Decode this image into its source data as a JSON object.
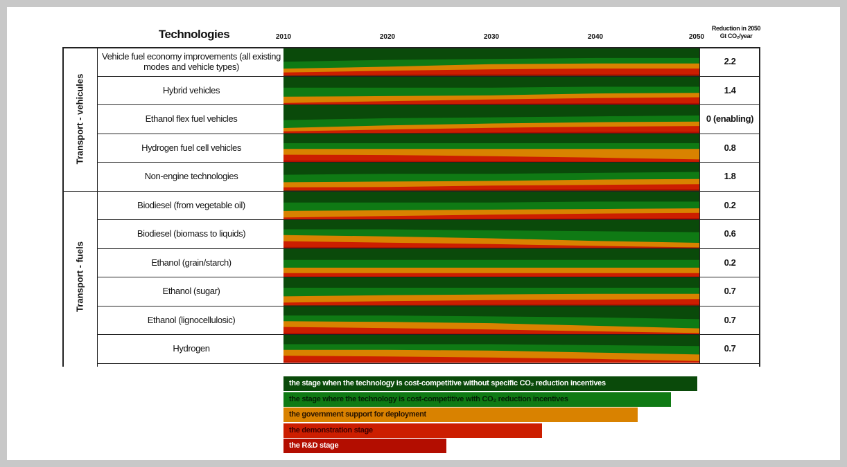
{
  "chart_data": {
    "type": "area",
    "title": "Technologies",
    "value_header_line1": "Reduction in 2050",
    "value_header_line2": "Gt CO₂/year",
    "x": [
      2010,
      2020,
      2030,
      2040,
      2050
    ],
    "xlim": [
      2010,
      2050
    ],
    "stages": [
      {
        "key": "cost_competitive",
        "label": "the stage when the technology is cost-competitive without specific CO₂ reduction incentives",
        "color": "#0a4a0a"
      },
      {
        "key": "incentives",
        "label": "the stage where the technology is cost-competitive with CO₂ reduction incentives",
        "color": "#0f7a14"
      },
      {
        "key": "deployment",
        "label": "the government support for deployment",
        "color": "#d98200"
      },
      {
        "key": "demonstration",
        "label": "the demonstration stage",
        "color": "#cc1e00"
      },
      {
        "key": "rd",
        "label": "the R&D stage",
        "color": "#b30d00"
      }
    ],
    "groups": [
      {
        "label": "Transport - vehicules",
        "rows": [
          0,
          4
        ]
      },
      {
        "label": "Transport - fuels",
        "rows": [
          5,
          10
        ]
      }
    ],
    "rows": [
      {
        "label": "Vehicle fuel economy improvements (all existing modes and vehicle types)",
        "value": "2.2",
        "boundaries": [
          [
            0.25,
            0.15,
            0.1,
            0.05,
            0.05
          ],
          [
            0.45,
            0.3,
            0.1,
            0.05,
            0.05
          ],
          [
            0.55,
            0.3,
            0.1,
            0.0,
            0.0
          ],
          [
            0.8,
            0.15,
            0.0,
            0.0,
            0.0
          ]
        ]
      },
      {
        "label": "Hybrid vehicles",
        "value": "1.4",
        "boundaries": [
          [
            0.1,
            0.1,
            0.1,
            0.05,
            0.05
          ],
          [
            0.4,
            0.35,
            0.3,
            0.15,
            0.1
          ],
          [
            0.8,
            0.55,
            0.3,
            0.1,
            0.0
          ],
          [
            1.0,
            0.75,
            0.4,
            0.05,
            0.0
          ]
        ]
      },
      {
        "label": "Ethanol flex fuel vehicles",
        "value": "0 (enabling)",
        "boundaries": [
          [
            0.3,
            0.2,
            0.15,
            0.1,
            0.05
          ],
          [
            0.6,
            0.4,
            0.25,
            0.15,
            0.1
          ],
          [
            0.75,
            0.5,
            0.25,
            0.1,
            0.0
          ],
          [
            0.92,
            0.9,
            0.4,
            0.05,
            0.0
          ]
        ]
      },
      {
        "label": "Hydrogen fuel cell vehicles",
        "value": "0.8",
        "boundaries": [
          [
            0.0,
            0.0,
            0.0,
            0.0,
            0.0
          ],
          [
            0.0,
            0.0,
            0.0,
            0.0,
            0.0
          ],
          [
            0.0,
            0.0,
            0.0,
            0.0,
            0.0
          ],
          [
            0.0,
            0.0,
            0.0,
            0.0,
            0.0
          ]
        ]
      },
      {
        "label": "Non-engine technologies",
        "value": "1.8",
        "boundaries": [
          [
            0.15,
            0.1,
            0.1,
            0.05,
            0.0
          ],
          [
            0.35,
            0.3,
            0.25,
            0.15,
            0.1
          ],
          [
            0.55,
            0.5,
            0.3,
            0.2,
            0.1
          ],
          [
            0.85,
            0.65,
            0.1,
            0.0,
            0.0
          ]
        ]
      },
      {
        "label": "Biodiesel (from vegetable oil)",
        "value": "0.2",
        "boundaries": [
          [
            0.1,
            0.1,
            0.1,
            0.05,
            0.05
          ],
          [
            0.35,
            0.3,
            0.25,
            0.2,
            0.15
          ],
          [
            0.75,
            0.55,
            0.35,
            0.2,
            0.1
          ],
          [
            0.95,
            0.8,
            0.5,
            0.3,
            0.1
          ]
        ]
      },
      {
        "label": "Biodiesel (biomass to liquids)",
        "value": "0.6",
        "boundaries": [
          [
            0.0,
            0.0,
            0.0,
            0.0,
            0.0
          ],
          [
            0.0,
            0.0,
            0.0,
            0.0,
            0.0
          ],
          [
            0.0,
            0.0,
            0.0,
            0.0,
            0.0
          ],
          [
            0.0,
            0.0,
            0.0,
            0.0,
            0.0
          ]
        ]
      },
      {
        "label": "Ethanol (grain/starch)",
        "value": "0.2",
        "boundaries": [
          [
            0.1,
            0.1,
            0.1,
            0.1,
            0.1
          ],
          [
            0.3,
            0.3,
            0.3,
            0.3,
            0.3
          ],
          [
            0.5,
            0.5,
            0.5,
            0.5,
            0.5
          ],
          [
            0.8,
            0.8,
            0.8,
            0.8,
            0.8
          ]
        ]
      },
      {
        "label": "Ethanol (sugar)",
        "value": "0.7",
        "boundaries": [
          [
            0.05,
            0.05,
            0.05,
            0.05,
            0.05
          ],
          [
            0.3,
            0.2,
            0.15,
            0.1,
            0.1
          ],
          [
            0.6,
            0.4,
            0.25,
            0.2,
            0.1
          ],
          [
            0.85,
            0.65,
            0.4,
            0.25,
            0.15
          ]
        ]
      },
      {
        "label": "Ethanol (lignocellulosic)",
        "value": "0.7",
        "boundaries": [
          [
            0.0,
            0.0,
            0.0,
            0.0,
            0.0
          ],
          [
            0.0,
            0.0,
            0.0,
            0.0,
            0.0
          ],
          [
            0.0,
            0.0,
            0.0,
            0.0,
            0.0
          ],
          [
            0.0,
            0.0,
            0.0,
            0.0,
            0.0
          ]
        ]
      },
      {
        "label": "Hydrogen",
        "value": "0.7",
        "boundaries": [
          [
            0.0,
            0.0,
            0.0,
            0.0,
            0.0
          ],
          [
            0.0,
            0.0,
            0.0,
            0.0,
            0.0
          ],
          [
            0.0,
            0.0,
            0.0,
            0.0,
            0.0
          ],
          [
            0.0,
            0.0,
            0.0,
            0.0,
            0.0
          ]
        ]
      }
    ]
  }
}
